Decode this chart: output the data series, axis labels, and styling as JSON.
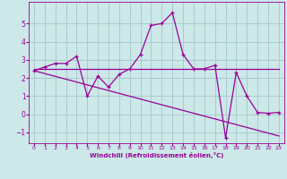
{
  "xlabel": "Windchill (Refroidissement éolien,°C)",
  "background_color": "#cce8e8",
  "grid_color": "#aacccc",
  "line_color": "#990099",
  "xlim": [
    -0.5,
    23.5
  ],
  "ylim": [
    -1.6,
    6.2
  ],
  "yticks": [
    -1,
    0,
    1,
    2,
    3,
    4,
    5
  ],
  "xticks": [
    0,
    1,
    2,
    3,
    4,
    5,
    6,
    7,
    8,
    9,
    10,
    11,
    12,
    13,
    14,
    15,
    16,
    17,
    18,
    19,
    20,
    21,
    22,
    23
  ],
  "series1_x": [
    0,
    1,
    2,
    3,
    4,
    5,
    6,
    7,
    8,
    9,
    10,
    11,
    12,
    13,
    14,
    15,
    16,
    17,
    18,
    19,
    20,
    21,
    22,
    23
  ],
  "series1_y": [
    2.4,
    2.6,
    2.8,
    2.8,
    3.2,
    1.0,
    2.1,
    1.5,
    2.2,
    2.5,
    3.3,
    4.9,
    5.0,
    5.6,
    3.3,
    2.5,
    2.5,
    2.7,
    -1.3,
    2.3,
    1.0,
    0.1,
    0.05,
    0.1
  ],
  "series2_x": [
    0,
    23
  ],
  "series2_y": [
    2.5,
    2.5
  ],
  "series3_x": [
    0,
    23
  ],
  "series3_y": [
    2.4,
    -1.2
  ]
}
